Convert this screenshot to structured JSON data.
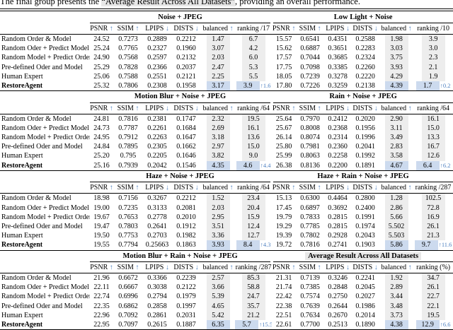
{
  "intro": {
    "prefix": "The final group presents the ",
    "highlight": "“Average Result Across All Datasets”",
    "suffix": ", providing an overall performance."
  },
  "colors": {
    "accent_blue": "#4e80c0",
    "shade_gray": "#ededed",
    "shade_blue": "#ccdaee",
    "title_highlight": "#e8e8e8"
  },
  "metric_headers": [
    {
      "label": "PSNR",
      "arrow": "↑"
    },
    {
      "label": "SSIM",
      "arrow": "↑"
    },
    {
      "label": "LPIPS",
      "arrow": "↓"
    },
    {
      "label": "DISTS",
      "arrow": "↓"
    },
    {
      "label": "balanced",
      "arrow": "↑"
    }
  ],
  "row_labels": [
    "Random Order & Model",
    "Random Oder + Predict Model",
    "Random Model + Predict Order",
    "Pre-defined Oder and Model",
    "Human Expert",
    "RestoreAgent"
  ],
  "groups": [
    {
      "left": {
        "title": "Noise + JPEG",
        "highlight": false,
        "ranking_header": "ranking /17",
        "rows": [
          [
            "24.52",
            "0.7273",
            "0.2889",
            "0.2212",
            "1.47",
            "6.7"
          ],
          [
            "25.24",
            "0.7765",
            "0.2327",
            "0.1960",
            "3.07",
            "4.2"
          ],
          [
            "24.90",
            "0.7568",
            "0.2597",
            "0.2132",
            "2.03",
            "6.0"
          ],
          [
            "25.29",
            "0.7828",
            "0.2366",
            "0.2037",
            "2.47",
            "5.3"
          ],
          [
            "25.06",
            "0.7588",
            "0.2551",
            "0.2121",
            "2.25",
            "5.5"
          ],
          [
            "25.32",
            "0.7806",
            "0.2308",
            "0.1958",
            "3.17",
            "3.9"
          ]
        ],
        "gain": "↑1.6"
      },
      "right": {
        "title": "Low Light + Noise",
        "highlight": false,
        "ranking_header": "ranking /10",
        "rows": [
          [
            "15.57",
            "0.6541",
            "0.4351",
            "0.2588",
            "1.98",
            "3.9"
          ],
          [
            "15.62",
            "0.6887",
            "0.3651",
            "0.2283",
            "3.03",
            "3.0"
          ],
          [
            "17.57",
            "0.7044",
            "0.3685",
            "0.2324",
            "3.75",
            "2.3"
          ],
          [
            "17.75",
            "0.7098",
            "0.3385",
            "0.2260",
            "3.93",
            "2.1"
          ],
          [
            "18.05",
            "0.7239",
            "0.3278",
            "0.2220",
            "4.29",
            "1.9"
          ],
          [
            "17.80",
            "0.7226",
            "0.3259",
            "0.2138",
            "4.39",
            "1.7"
          ]
        ],
        "gain": "↑0.2"
      }
    },
    {
      "left": {
        "title": "Motion Blur + Noise + JPEG",
        "highlight": false,
        "ranking_header": "ranking /64",
        "rows": [
          [
            "24.81",
            "0.7816",
            "0.2381",
            "0.1747",
            "2.32",
            "19.5"
          ],
          [
            "24.73",
            "0.7787",
            "0.2261",
            "0.1684",
            "2.69",
            "16.1"
          ],
          [
            "24.95",
            "0.7912",
            "0.2263",
            "0.1647",
            "3.18",
            "13.6"
          ],
          [
            "24.84",
            "0.7895",
            "0.2305",
            "0.1662",
            "2.97",
            "15.0"
          ],
          [
            "25.20",
            "0.795",
            "0.2205",
            "0.1646",
            "3.82",
            "9.0"
          ],
          [
            "25.16",
            "0.7939",
            "0.2042",
            "0.1546",
            "4.35",
            "4.6"
          ]
        ],
        "gain": "↑4.4"
      },
      "right": {
        "title": "Rain + Noise + JPEG",
        "highlight": false,
        "ranking_header": "ranking /64",
        "rows": [
          [
            "25.64",
            "0.7970",
            "0.2412",
            "0.2020",
            "2.90",
            "16.1"
          ],
          [
            "25.67",
            "0.8008",
            "0.2368",
            "0.1956",
            "3.11",
            "15.0"
          ],
          [
            "26.14",
            "0.8074",
            "0.2314",
            "0.1996",
            "3.49",
            "13.3"
          ],
          [
            "25.80",
            "0.7981",
            "0.2360",
            "0.2041",
            "2.83",
            "16.7"
          ],
          [
            "25.99",
            "0.8063",
            "0.2258",
            "0.1992",
            "3.58",
            "12.6"
          ],
          [
            "26.38",
            "0.8136",
            "0.2200",
            "0.1891",
            "4.67",
            "6.4"
          ]
        ],
        "gain": "↑6.2"
      }
    },
    {
      "left": {
        "title": "Haze + Noise + JPEG",
        "highlight": false,
        "ranking_header": "ranking /64",
        "rows": [
          [
            "18.98",
            "0.7156",
            "0.3267",
            "0.2212",
            "1.52",
            "23.4"
          ],
          [
            "19.00",
            "0.7235",
            "0.3133",
            "0.2081",
            "2.03",
            "20.4"
          ],
          [
            "19.67",
            "0.7653",
            "0.2778",
            "0.2010",
            "2.95",
            "15.9"
          ],
          [
            "19.47",
            "0.7803",
            "0.2641",
            "0.1912",
            "3.51",
            "12.4"
          ],
          [
            "19.50",
            "0.7753",
            "0.2703",
            "0.1982",
            "3.36",
            "12.7"
          ],
          [
            "19.55",
            "0.7794",
            "0.25663",
            "0.1863",
            "3.93",
            "8.4"
          ]
        ],
        "gain": "↑4.3"
      },
      "right": {
        "title": "Haze + Rain + Noise + JPEG",
        "highlight": false,
        "ranking_header": "ranking /287",
        "rows": [
          [
            "15.13",
            "0.6300",
            "0.4464",
            "0.2800",
            "1.28",
            "102.5"
          ],
          [
            "17.45",
            "0.6897",
            "0.3692",
            "0.2400",
            "2.86",
            "72.8"
          ],
          [
            "19.79",
            "0.7833",
            "0.2815",
            "0.1991",
            "5.66",
            "16.9"
          ],
          [
            "19.29",
            "0.7785",
            "0.2815",
            "0.1974",
            "5.502",
            "26.1"
          ],
          [
            "19.39",
            "0.7802",
            "0.2928",
            "0.2043",
            "5.503",
            "21.3"
          ],
          [
            "19.72",
            "0.7816",
            "0.2741",
            "0.1903",
            "5.86",
            "9.7"
          ]
        ],
        "gain": "↑11.6"
      }
    },
    {
      "left": {
        "title": "Motion Blur + Rain + Noise + JPEG",
        "highlight": false,
        "ranking_header": "ranking /287",
        "rows": [
          [
            "21.96",
            "0.6672",
            "0.3366",
            "0.2239",
            "2.57",
            "85.3"
          ],
          [
            "22.11",
            "0.6667",
            "0.3038",
            "0.2122",
            "3.66",
            "58.8"
          ],
          [
            "22.74",
            "0.6996",
            "0.2794",
            "0.1979",
            "5.39",
            "24.7"
          ],
          [
            "22.35",
            "0.6862",
            "0.2858",
            "0.1997",
            "4.65",
            "35.7"
          ],
          [
            "22.96",
            "0.7092",
            "0.2861",
            "0.2031",
            "5.42",
            "21.2"
          ],
          [
            "22.95",
            "0.7097",
            "0.2615",
            "0.1887",
            "6.35",
            "5.7"
          ]
        ],
        "gain": "↑15.5"
      },
      "right": {
        "title": "Average Result Across All Datasets",
        "highlight": true,
        "ranking_header": "ranking (%)",
        "rows": [
          [
            "21.31",
            "0.7139",
            "0.3246",
            "0.2241",
            "1.92",
            "34.7"
          ],
          [
            "21.74",
            "0.7385",
            "0.2848",
            "0.2045",
            "2.89",
            "26.1"
          ],
          [
            "22.42",
            "0.7574",
            "0.2750",
            "0.2027",
            "3.44",
            "22.7"
          ],
          [
            "22.38",
            "0.7639",
            "0.2644",
            "0.1986",
            "3.48",
            "22.1"
          ],
          [
            "22.51",
            "0.7634",
            "0.2670",
            "0.2014",
            "3.73",
            "19.5"
          ],
          [
            "22.61",
            "0.7700",
            "0.2513",
            "0.1890",
            "4.38",
            "12.9"
          ]
        ],
        "gain": "↑6.6"
      }
    }
  ]
}
